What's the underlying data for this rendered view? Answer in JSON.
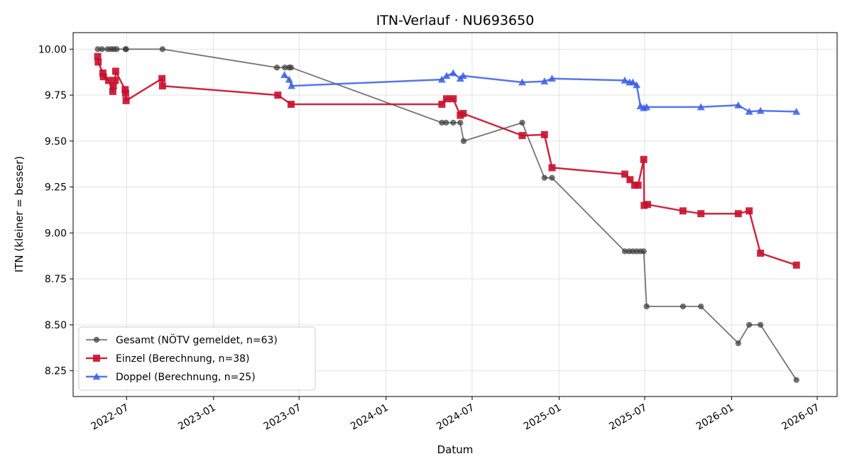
{
  "chart_data": {
    "type": "line",
    "title": "ITN-Verlauf · NU693650",
    "xlabel": "Datum",
    "ylabel": "ITN  (kleiner = besser)",
    "x_axis": {
      "kind": "date",
      "range": [
        "2022-03-10",
        "2026-08-12"
      ],
      "ticks": [
        "2022-07",
        "2023-01",
        "2023-07",
        "2024-01",
        "2024-07",
        "2025-01",
        "2025-07",
        "2026-01",
        "2026-07"
      ]
    },
    "y_axis": {
      "range": [
        8.11,
        10.09
      ],
      "ticks": [
        "10.00",
        "9.75",
        "9.50",
        "9.25",
        "9.00",
        "8.75",
        "8.50",
        "8.25"
      ]
    },
    "grid": true,
    "legend_position": "bottom-left",
    "series": [
      {
        "name": "Gesamt (NÖTV gemeldet, n=63)",
        "color": "#3a3a3a",
        "opacity": 0.7,
        "marker": "circle",
        "points": [
          [
            "2022-05-01",
            10.0
          ],
          [
            "2022-05-10",
            10.0
          ],
          [
            "2022-05-22",
            10.0
          ],
          [
            "2022-05-29",
            10.0
          ],
          [
            "2022-06-04",
            10.0
          ],
          [
            "2022-06-10",
            10.0
          ],
          [
            "2022-06-29",
            10.0
          ],
          [
            "2022-06-30",
            10.0
          ],
          [
            "2022-09-15",
            10.0
          ],
          [
            "2023-05-15",
            9.9
          ],
          [
            "2023-06-01",
            9.9
          ],
          [
            "2023-06-10",
            9.9
          ],
          [
            "2023-06-14",
            9.9
          ],
          [
            "2024-04-28",
            9.6
          ],
          [
            "2024-05-07",
            9.6
          ],
          [
            "2024-05-22",
            9.6
          ],
          [
            "2024-06-06",
            9.6
          ],
          [
            "2024-06-13",
            9.5
          ],
          [
            "2024-10-15",
            9.6
          ],
          [
            "2024-12-01",
            9.3
          ],
          [
            "2024-12-17",
            9.3
          ],
          [
            "2025-05-20",
            8.9
          ],
          [
            "2025-05-29",
            8.9
          ],
          [
            "2025-06-06",
            8.9
          ],
          [
            "2025-06-14",
            8.9
          ],
          [
            "2025-06-22",
            8.9
          ],
          [
            "2025-06-29",
            8.9
          ],
          [
            "2025-07-05",
            8.6
          ],
          [
            "2025-09-20",
            8.6
          ],
          [
            "2025-10-28",
            8.6
          ],
          [
            "2026-01-15",
            8.4
          ],
          [
            "2026-02-07",
            8.5
          ],
          [
            "2026-03-03",
            8.5
          ],
          [
            "2026-05-18",
            8.2
          ]
        ]
      },
      {
        "name": "Einzel (Berechnung, n=38)",
        "color": "#c8102e",
        "opacity": 0.9,
        "marker": "square",
        "points": [
          [
            "2022-05-01",
            9.96
          ],
          [
            "2022-05-02",
            9.93
          ],
          [
            "2022-05-12",
            9.87
          ],
          [
            "2022-05-13",
            9.85
          ],
          [
            "2022-05-24",
            9.83
          ],
          [
            "2022-06-02",
            9.77
          ],
          [
            "2022-06-03",
            9.8
          ],
          [
            "2022-06-07",
            9.83
          ],
          [
            "2022-06-08",
            9.88
          ],
          [
            "2022-06-28",
            9.78
          ],
          [
            "2022-06-29",
            9.76
          ],
          [
            "2022-06-30",
            9.72
          ],
          [
            "2022-09-14",
            9.84
          ],
          [
            "2022-09-15",
            9.8
          ],
          [
            "2023-05-17",
            9.75
          ],
          [
            "2023-06-14",
            9.7
          ],
          [
            "2024-04-28",
            9.7
          ],
          [
            "2024-05-08",
            9.73
          ],
          [
            "2024-05-22",
            9.73
          ],
          [
            "2024-06-06",
            9.64
          ],
          [
            "2024-06-12",
            9.65
          ],
          [
            "2024-10-15",
            9.53
          ],
          [
            "2024-12-01",
            9.535
          ],
          [
            "2024-12-17",
            9.355
          ],
          [
            "2025-05-20",
            9.32
          ],
          [
            "2025-05-31",
            9.29
          ],
          [
            "2025-06-10",
            9.26
          ],
          [
            "2025-06-17",
            9.26
          ],
          [
            "2025-06-29",
            9.4
          ],
          [
            "2025-06-30",
            9.15
          ],
          [
            "2025-07-07",
            9.155
          ],
          [
            "2025-09-20",
            9.12
          ],
          [
            "2025-10-28",
            9.105
          ],
          [
            "2026-01-15",
            9.105
          ],
          [
            "2026-02-07",
            9.12
          ],
          [
            "2026-03-03",
            8.89
          ],
          [
            "2026-05-18",
            8.825
          ]
        ]
      },
      {
        "name": "Doppel (Berechnung, n=25)",
        "color": "#3a5ee6",
        "opacity": 0.85,
        "marker": "triangle",
        "points": [
          [
            "2023-05-31",
            9.86
          ],
          [
            "2023-06-10",
            9.835
          ],
          [
            "2023-06-15",
            9.8
          ],
          [
            "2024-04-28",
            9.835
          ],
          [
            "2024-05-08",
            9.855
          ],
          [
            "2024-05-22",
            9.87
          ],
          [
            "2024-06-06",
            9.84
          ],
          [
            "2024-06-12",
            9.855
          ],
          [
            "2024-10-15",
            9.82
          ],
          [
            "2024-12-01",
            9.825
          ],
          [
            "2024-12-17",
            9.84
          ],
          [
            "2025-05-20",
            9.83
          ],
          [
            "2025-05-30",
            9.82
          ],
          [
            "2025-06-06",
            9.82
          ],
          [
            "2025-06-14",
            9.805
          ],
          [
            "2025-06-22",
            9.69
          ],
          [
            "2025-06-29",
            9.68
          ],
          [
            "2025-07-05",
            9.685
          ],
          [
            "2025-10-28",
            9.685
          ],
          [
            "2026-01-15",
            9.695
          ],
          [
            "2026-02-07",
            9.66
          ],
          [
            "2026-03-03",
            9.665
          ],
          [
            "2026-05-18",
            9.66
          ]
        ]
      }
    ]
  }
}
